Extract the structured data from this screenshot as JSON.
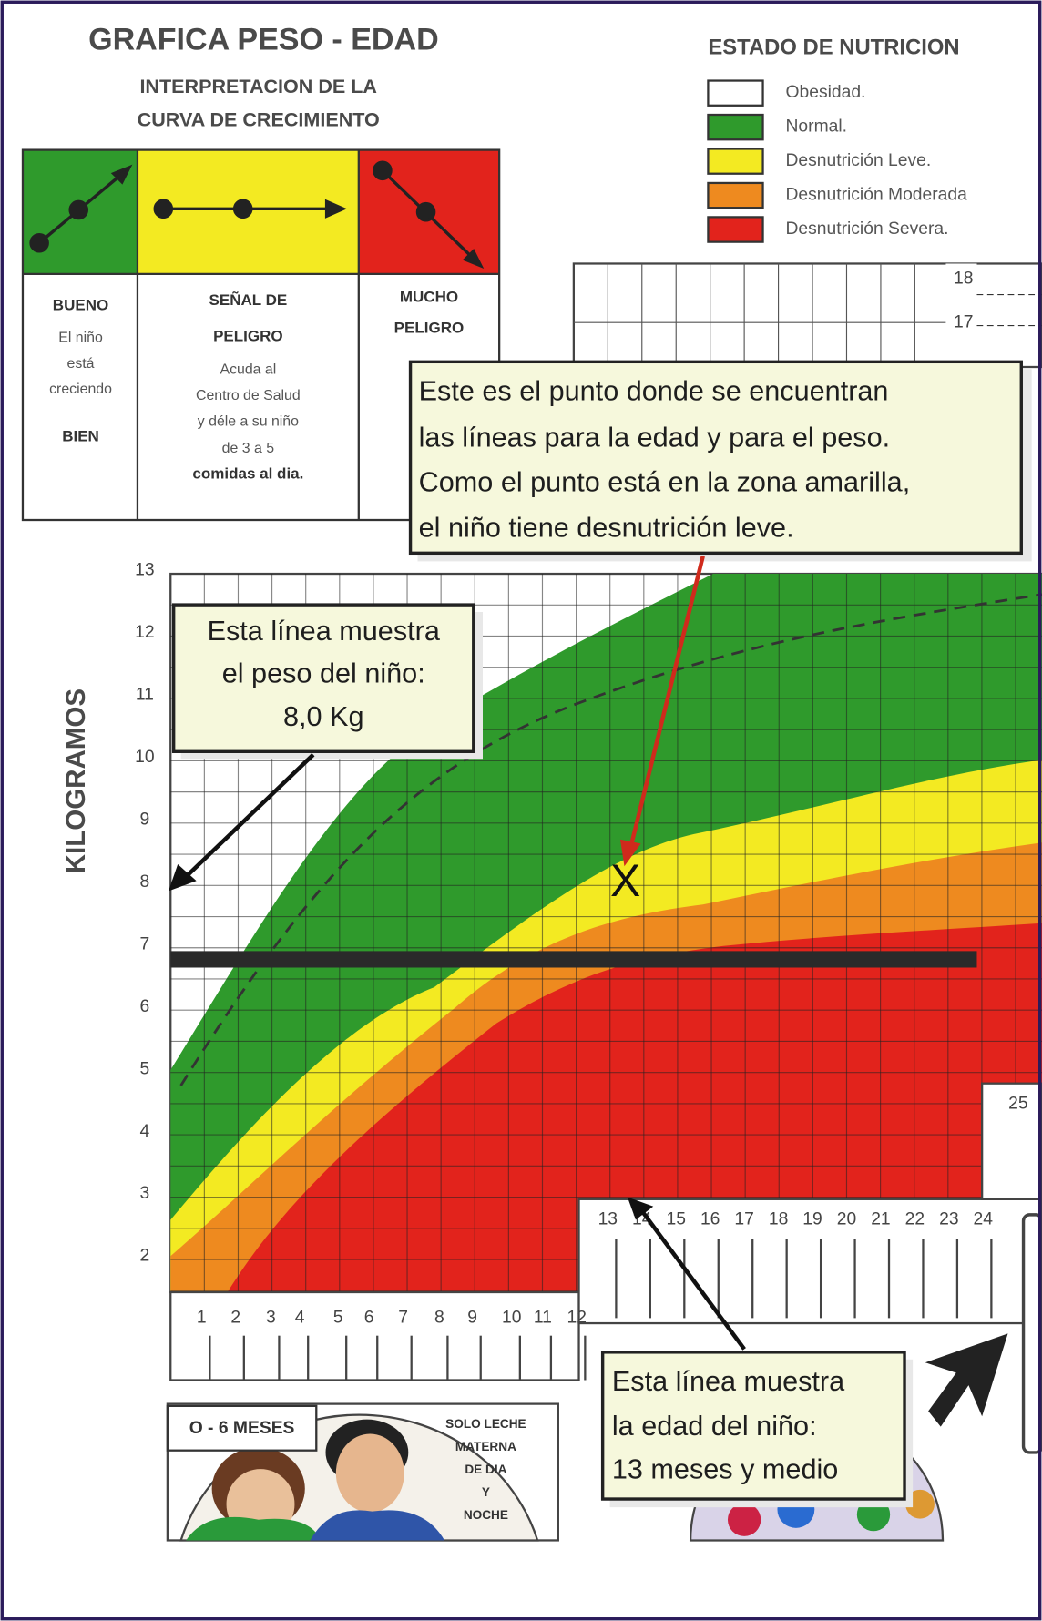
{
  "header": {
    "title": "GRAFICA PESO - EDAD",
    "subtitle": [
      "INTERPRETACION DE LA",
      "CURVA DE CRECIMIENTO"
    ]
  },
  "legend": {
    "title": "ESTADO DE NUTRICION",
    "items": [
      {
        "label": "Obesidad.",
        "color": "#ffffff"
      },
      {
        "label": "Normal.",
        "color": "#2f9a2c"
      },
      {
        "label": "Desnutrición Leve.",
        "color": "#f3ea22"
      },
      {
        "label": "Desnutrición Moderada",
        "color": "#ee8a1f"
      },
      {
        "label": "Desnutrición Severa.",
        "color": "#e2231c"
      }
    ]
  },
  "interpretation": [
    {
      "lines": [
        "BUENO",
        "El niño",
        "está",
        "creciendo",
        "BIEN"
      ]
    },
    {
      "lines": [
        "SEÑAL DE",
        "PELIGRO",
        "Acuda al",
        "Centro de Salud",
        "y déle a su niño",
        "de 3 a 5",
        "comidas al dia."
      ]
    },
    {
      "lines": [
        "MUCHO",
        "PELIGRO"
      ]
    }
  ],
  "chart": {
    "y_axis_label": "KILOGRAMOS",
    "y_ticks": [
      13,
      12,
      11,
      10,
      9,
      8,
      7,
      6,
      5,
      4,
      3,
      2
    ],
    "age_ticks_first": [
      1,
      2,
      3,
      4,
      5,
      6,
      7,
      8,
      9,
      10,
      11,
      12
    ],
    "age_ticks_second": [
      13,
      14,
      15,
      16,
      17,
      18,
      19,
      20,
      21,
      22,
      23,
      24
    ],
    "top_scale": [
      18,
      17
    ],
    "side_scale": [
      25
    ],
    "marker": "X"
  },
  "callouts": {
    "point": [
      "Este es el punto donde se encuentran",
      "las líneas para la edad y para el peso.",
      "Como el punto está en la zona amarilla,",
      "el niño tiene desnutrición leve."
    ],
    "weight": [
      "Esta línea muestra",
      "el peso del niño:",
      "8,0 Kg"
    ],
    "age": [
      "Esta línea muestra",
      "la edad  del niño:",
      "13 meses y medio"
    ]
  },
  "bottom": {
    "badge": "O - 6 MESES",
    "note": [
      "SOLO LECHE",
      "MATERNA",
      "DE DIA",
      "Y",
      "NOCHE"
    ]
  }
}
